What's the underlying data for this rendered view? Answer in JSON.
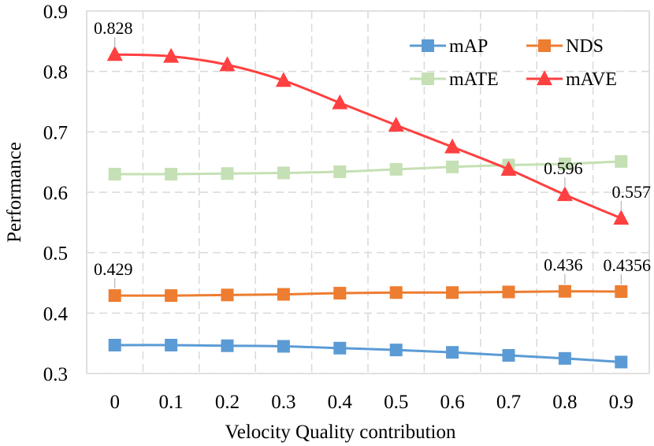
{
  "chart_data": {
    "type": "line",
    "title": "",
    "xlabel": "Velocity Quality contribution",
    "ylabel": "Performance",
    "categories": [
      "0",
      "0.1",
      "0.2",
      "0.3",
      "0.4",
      "0.5",
      "0.6",
      "0.7",
      "0.8",
      "0.9"
    ],
    "ylim": [
      0.3,
      0.9
    ],
    "yticks": [
      "0.3",
      "0.4",
      "0.5",
      "0.6",
      "0.7",
      "0.8",
      "0.9"
    ],
    "grid": true,
    "legend_position": "top-right",
    "series": [
      {
        "name": "mAP",
        "color": "#5b9bd5",
        "marker": "square",
        "values": [
          0.347,
          0.347,
          0.346,
          0.345,
          0.342,
          0.339,
          0.335,
          0.33,
          0.325,
          0.319
        ]
      },
      {
        "name": "NDS",
        "color": "#ed7d31",
        "marker": "square",
        "values": [
          0.429,
          0.429,
          0.43,
          0.431,
          0.433,
          0.434,
          0.434,
          0.435,
          0.436,
          0.4356
        ]
      },
      {
        "name": "mATE",
        "color": "#c5e0b4",
        "marker": "square",
        "values": [
          0.63,
          0.63,
          0.631,
          0.632,
          0.634,
          0.638,
          0.642,
          0.645,
          0.647,
          0.651
        ]
      },
      {
        "name": "mAVE",
        "color": "#ff4040",
        "marker": "triangle",
        "values": [
          0.828,
          0.825,
          0.811,
          0.785,
          0.748,
          0.711,
          0.675,
          0.638,
          0.596,
          0.557
        ]
      }
    ],
    "annotations": [
      {
        "series": "mAVE",
        "index": 0,
        "text": "0.828"
      },
      {
        "series": "mAVE",
        "index": 8,
        "text": "0.596"
      },
      {
        "series": "mAVE",
        "index": 9,
        "text": "0.557"
      },
      {
        "series": "NDS",
        "index": 0,
        "text": "0.429"
      },
      {
        "series": "NDS",
        "index": 8,
        "text": "0.436"
      },
      {
        "series": "NDS",
        "index": 9,
        "text": "0.4356"
      }
    ]
  }
}
